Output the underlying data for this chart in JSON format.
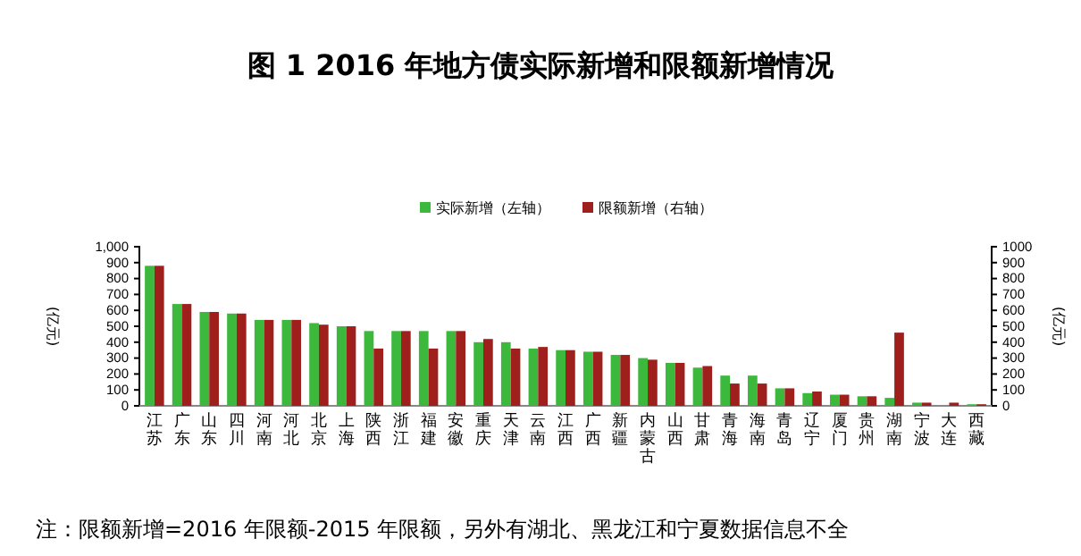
{
  "chart_data": {
    "type": "bar",
    "title": "图 1 2016 年地方债实际新增和限额新增情况",
    "categories": [
      "江苏",
      "广东",
      "山东",
      "四川",
      "河南",
      "河北",
      "北京",
      "上海",
      "陕西",
      "浙江",
      "福建",
      "安徽",
      "重庆",
      "天津",
      "云南",
      "江西",
      "广西",
      "新疆",
      "内蒙古",
      "山西",
      "甘肃",
      "青海",
      "海南",
      "青岛",
      "辽宁",
      "厦门",
      "贵州",
      "湖南",
      "宁波",
      "大连",
      "西藏"
    ],
    "series": [
      {
        "name": "实际新增（左轴）",
        "color": "#3cb83c",
        "values": [
          880,
          640,
          590,
          580,
          540,
          540,
          520,
          500,
          470,
          470,
          470,
          470,
          400,
          400,
          360,
          350,
          340,
          320,
          300,
          270,
          240,
          190,
          190,
          110,
          80,
          70,
          60,
          50,
          20,
          0,
          10
        ]
      },
      {
        "name": "限额新增（右轴）",
        "color": "#9e1f1c",
        "axis": "y2",
        "values": [
          880,
          640,
          590,
          580,
          540,
          540,
          510,
          500,
          360,
          470,
          360,
          470,
          420,
          360,
          370,
          350,
          340,
          320,
          290,
          270,
          250,
          140,
          140,
          110,
          90,
          70,
          60,
          460,
          20,
          20,
          10
        ]
      }
    ],
    "ylim": [
      0,
      1000
    ],
    "yticks": [
      0,
      100,
      200,
      300,
      400,
      500,
      600,
      700,
      800,
      900,
      {
        "value": 1000,
        "label": "1,000"
      }
    ],
    "y2lim": [
      0,
      1000
    ],
    "y2ticks": [
      0,
      100,
      200,
      300,
      400,
      500,
      600,
      700,
      800,
      900,
      1000
    ],
    "ylabel": "(亿元)",
    "y2label": "(亿元)",
    "legend": "top",
    "grid": false,
    "annotations": [
      "注：限额新增=2016 年限额-2015 年限额，另外有湖北、黑龙江和宁夏数据信息不全"
    ]
  }
}
